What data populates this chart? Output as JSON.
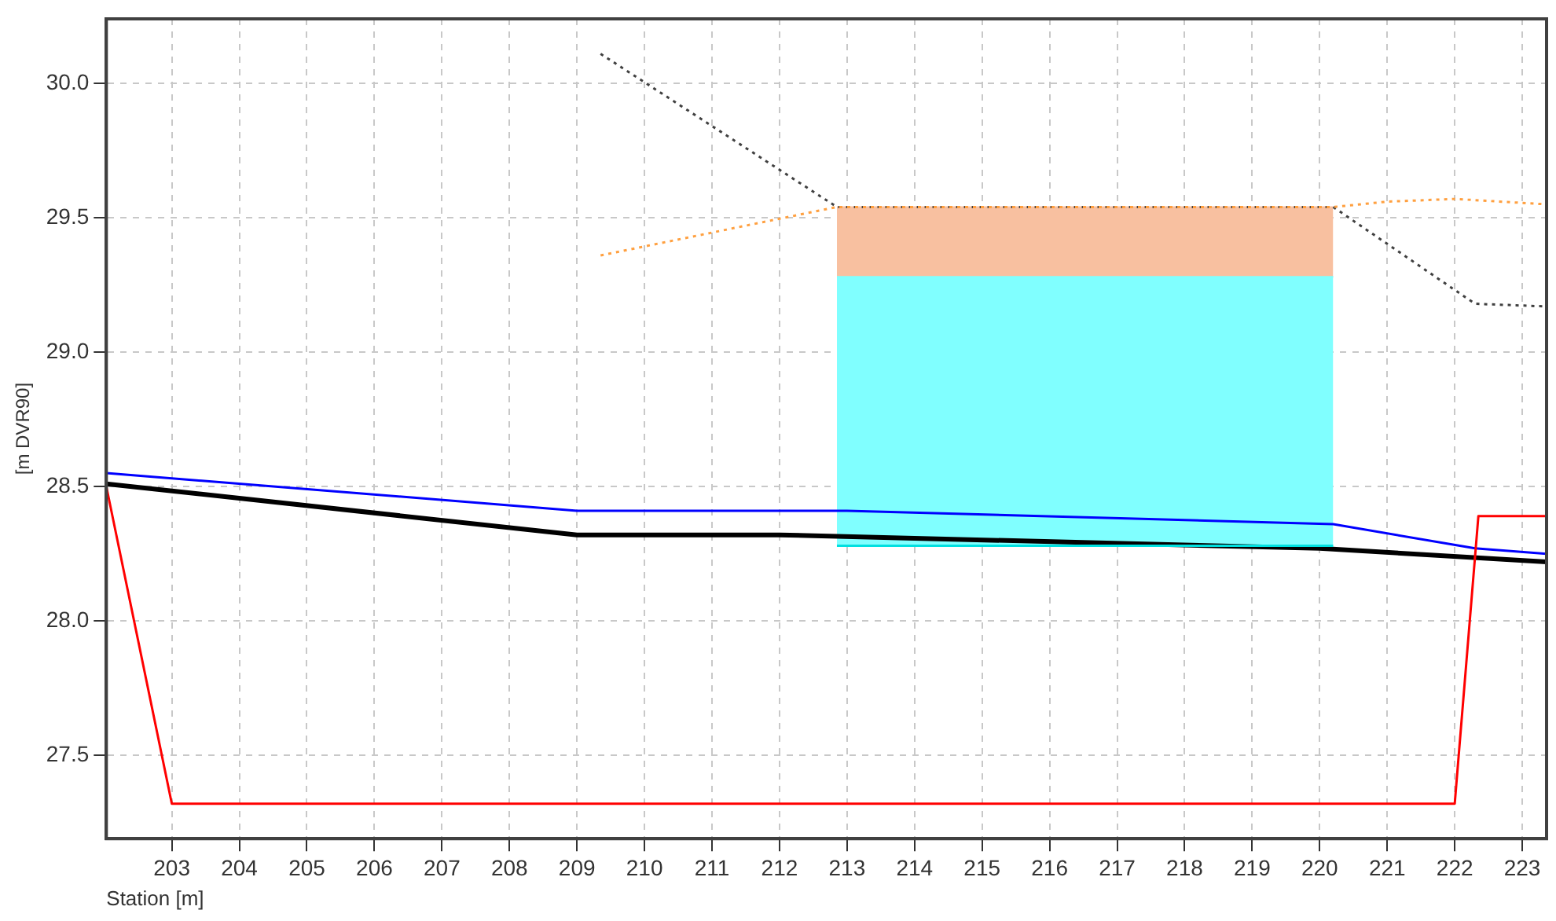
{
  "chart_data": {
    "type": "line",
    "xlabel": "Station [m]",
    "ylabel": "[m DVR90]",
    "xlim": [
      202.03,
      223.36
    ],
    "ylim": [
      27.19,
      30.24
    ],
    "xticks": [
      203,
      204,
      205,
      206,
      207,
      208,
      209,
      210,
      211,
      212,
      213,
      214,
      215,
      216,
      217,
      218,
      219,
      220,
      221,
      222,
      223
    ],
    "yticks": [
      {
        "value": 27.5,
        "label": "27.5"
      },
      {
        "value": 28,
        "label": "28.0"
      },
      {
        "value": 28.5,
        "label": "28.5"
      },
      {
        "value": 29,
        "label": "29.0"
      },
      {
        "value": 29.5,
        "label": "29.5"
      },
      {
        "value": 30,
        "label": "30.0"
      }
    ],
    "grid": true,
    "legend": false,
    "marker": "none",
    "series": [
      {
        "type": "line",
        "color": "#00e0e0",
        "line_style": "solid",
        "x": [
          212.85,
          220.2
        ],
        "values": [
          28.28,
          28.28
        ]
      },
      {
        "type": "area",
        "color": "#80ffff",
        "x": [
          212.85,
          220.2
        ],
        "values": [
          29.28,
          29.28
        ]
      },
      {
        "type": "area",
        "color": "#f8c0a0",
        "x": [
          212.85,
          220.2
        ],
        "values": [
          29.54,
          29.54
        ]
      },
      {
        "type": "line",
        "color": "#ffa040",
        "line_style": "dotted",
        "x": [
          209.35,
          212.85,
          220.2,
          221,
          222,
          223.36
        ],
        "values": [
          29.36,
          29.54,
          29.54,
          29.56,
          29.57,
          29.55
        ]
      },
      {
        "type": "line",
        "color": "#404040",
        "line_style": "dotted",
        "x": [
          209.35,
          212.85,
          220.2,
          222.3,
          223.36
        ],
        "values": [
          30.11,
          29.54,
          29.54,
          29.18,
          29.17
        ]
      },
      {
        "type": "line",
        "color": "#ff0000",
        "line_style": "solid",
        "x": [
          202.03,
          203,
          222,
          222.35,
          223.36
        ],
        "values": [
          28.5,
          27.32,
          27.32,
          28.39,
          28.39
        ]
      },
      {
        "type": "line",
        "color": "#0000ff",
        "line_style": "solid",
        "x": [
          202.03,
          209,
          213,
          220.2,
          222.3,
          223.36
        ],
        "values": [
          28.55,
          28.41,
          28.41,
          28.36,
          28.27,
          28.25
        ]
      },
      {
        "type": "line",
        "color": "#000000",
        "line_style": "solid",
        "x": [
          202.03,
          209,
          212,
          220,
          223.36
        ],
        "values": [
          28.51,
          28.32,
          28.32,
          28.27,
          28.22
        ]
      }
    ]
  }
}
